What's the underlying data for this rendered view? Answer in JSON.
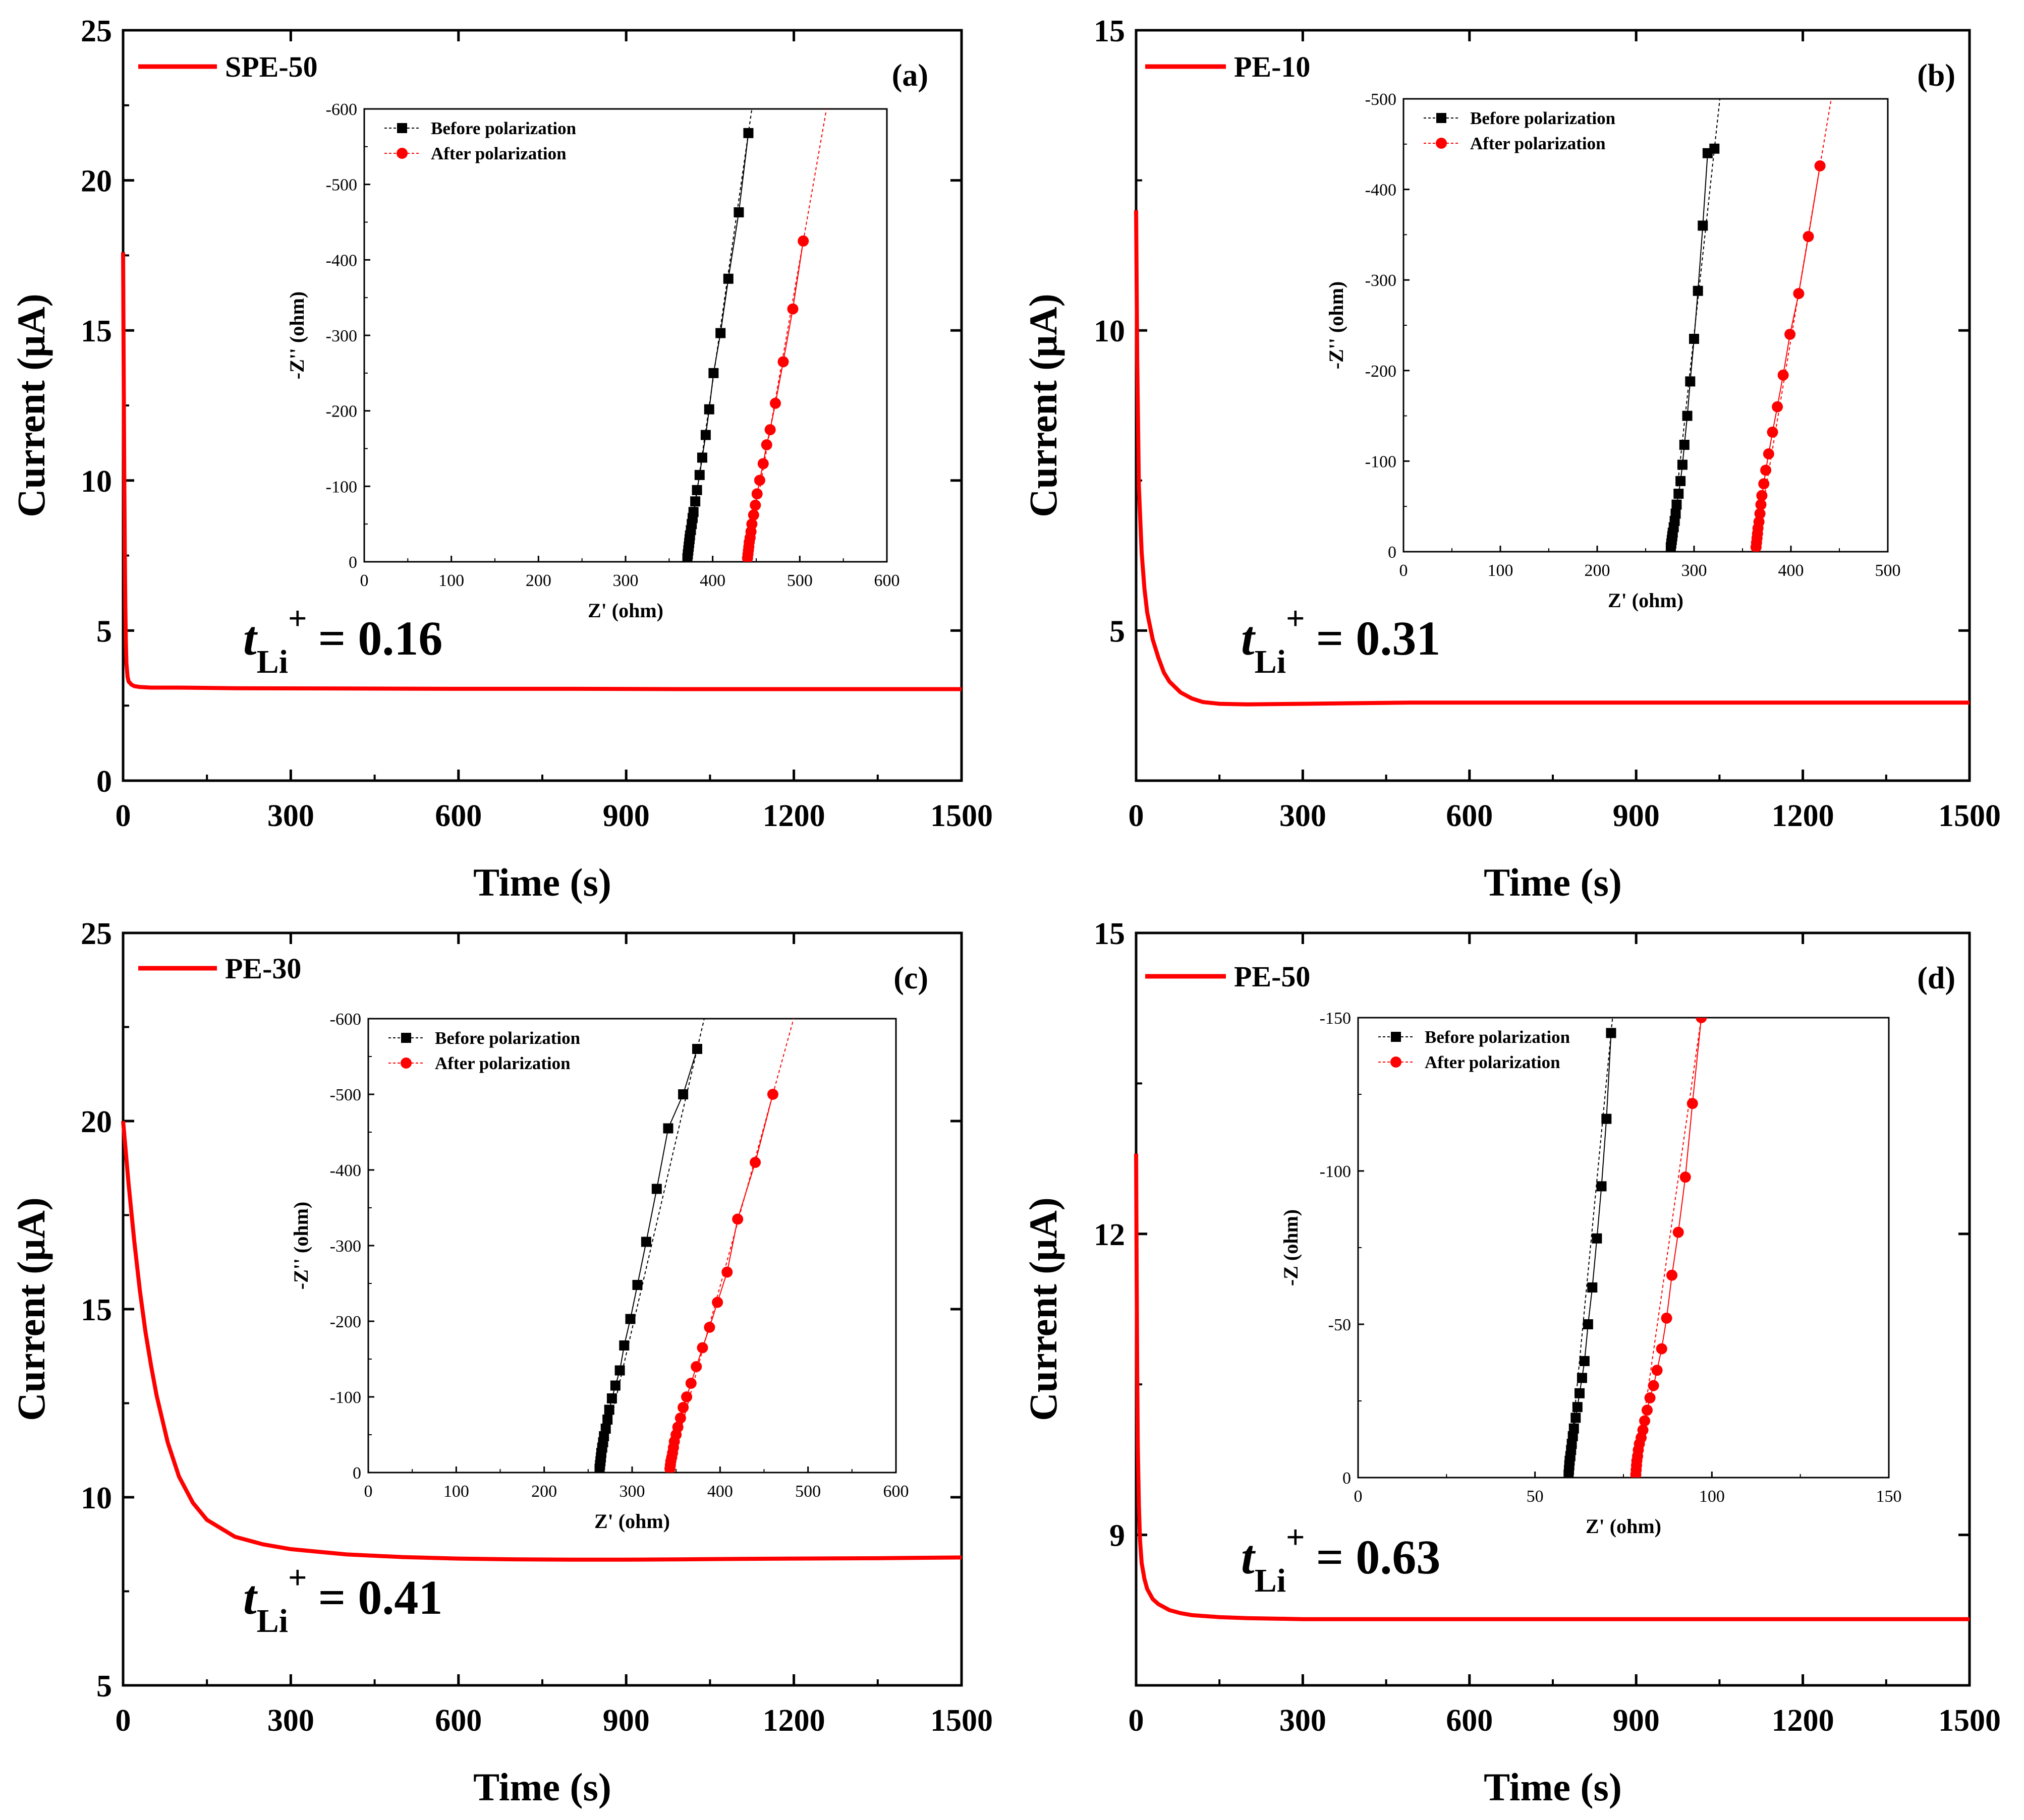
{
  "chart_data": [
    {
      "type": "line",
      "panel_label": "(a)",
      "legend": "SPE-50",
      "xlabel": "Time (s)",
      "ylabel": "Current (μA)",
      "xlim": [
        0,
        1500
      ],
      "ylim": [
        0,
        25
      ],
      "xticks": [
        0,
        300,
        600,
        900,
        1200,
        1500
      ],
      "yticks": [
        0,
        5,
        10,
        15,
        20,
        25
      ],
      "series": [
        {
          "name": "SPE-50",
          "color": "#ff0000",
          "x": [
            0,
            1,
            2,
            3,
            4,
            5,
            6,
            8,
            10,
            15,
            20,
            30,
            50,
            100,
            200,
            400,
            600,
            800,
            1000,
            1200,
            1500
          ],
          "y": [
            17.6,
            14.0,
            10.5,
            7.8,
            5.8,
            4.6,
            3.9,
            3.45,
            3.3,
            3.2,
            3.15,
            3.12,
            3.1,
            3.1,
            3.08,
            3.07,
            3.06,
            3.06,
            3.05,
            3.05,
            3.05
          ]
        }
      ],
      "annotation": {
        "prefix": "t",
        "sub": "Li",
        "sup": "+",
        "value": "= 0.16"
      },
      "inset": {
        "xlabel": "Z' (ohm)",
        "ylabel": "-Z'' (ohm)",
        "xlim": [
          0,
          600
        ],
        "ylim": [
          0,
          -600
        ],
        "xticks": [
          0,
          100,
          200,
          300,
          400,
          500,
          600
        ],
        "yticks": [
          0,
          -100,
          -200,
          -300,
          -400,
          -500,
          -600
        ],
        "series": [
          {
            "name": "Before polarization",
            "color": "#000000",
            "marker": "square",
            "x": [
              371,
              371.5,
              372,
              372.5,
              373,
              373.5,
              374,
              375,
              376,
              377,
              378,
              380,
              382,
              385,
              388,
              392,
              396,
              401,
              409,
              418,
              430,
              441
            ],
            "y": [
              -5,
              -10,
              -15,
              -20,
              -25,
              -30,
              -35,
              -42,
              -50,
              -58,
              -66,
              -80,
              -95,
              -115,
              -138,
              -168,
              -202,
              -250,
              -303,
              -375,
              -463,
              -568
            ]
          },
          {
            "name": "After polarization",
            "color": "#ff0000",
            "marker": "circle",
            "x": [
              440,
              440.5,
              441,
              441.5,
              442,
              443,
              444,
              445,
              447,
              449,
              451,
              454,
              458,
              462,
              466,
              472,
              481,
              492,
              504
            ],
            "y": [
              -5,
              -10,
              -15,
              -20,
              -26,
              -32,
              -40,
              -50,
              -62,
              -75,
              -90,
              -108,
              -130,
              -155,
              -175,
              -210,
              -265,
              -335,
              -425
            ]
          }
        ]
      }
    },
    {
      "type": "line",
      "panel_label": "(b)",
      "legend": "PE-10",
      "xlabel": "Time (s)",
      "ylabel": "Current (μA)",
      "xlim": [
        0,
        1500
      ],
      "ylim": [
        2.5,
        15
      ],
      "xticks": [
        0,
        300,
        600,
        900,
        1200,
        1500
      ],
      "yticks": [
        5,
        10,
        15
      ],
      "series": [
        {
          "name": "PE-10",
          "color": "#ff0000",
          "x": [
            0,
            2,
            5,
            10,
            15,
            20,
            30,
            40,
            50,
            60,
            80,
            100,
            120,
            150,
            200,
            300,
            500,
            700,
            900,
            1100,
            1300,
            1500
          ],
          "y": [
            12.0,
            9.5,
            7.4,
            6.3,
            5.7,
            5.3,
            4.85,
            4.55,
            4.3,
            4.15,
            3.97,
            3.87,
            3.81,
            3.78,
            3.77,
            3.78,
            3.8,
            3.8,
            3.8,
            3.8,
            3.8,
            3.8
          ]
        }
      ],
      "annotation": {
        "prefix": "t",
        "sub": "Li",
        "sup": "+",
        "value": "= 0.31"
      },
      "inset": {
        "xlabel": "Z' (ohm)",
        "ylabel": "-Z'' (ohm)",
        "xlim": [
          0,
          500
        ],
        "ylim": [
          0,
          -500
        ],
        "xticks": [
          0,
          100,
          200,
          300,
          400,
          500
        ],
        "yticks": [
          0,
          -100,
          -200,
          -300,
          -400,
          -500
        ],
        "series": [
          {
            "name": "Before polarization",
            "color": "#000000",
            "marker": "square",
            "x": [
              276,
              276.5,
              277,
              277.5,
              278,
              279,
              280,
              281,
              282,
              284,
              286,
              288,
              290,
              293,
              296,
              300,
              304,
              309,
              314,
              321
            ],
            "y": [
              -5,
              -9,
              -13,
              -17,
              -21,
              -27,
              -34,
              -42,
              -52,
              -64,
              -78,
              -96,
              -118,
              -150,
              -188,
              -235,
              -288,
              -360,
              -440,
              -445
            ]
          },
          {
            "name": "After polarization",
            "color": "#ff0000",
            "marker": "circle",
            "x": [
              364,
              364.5,
              365,
              365.5,
              366,
              367,
              368,
              369,
              370,
              372,
              374,
              377,
              381,
              386,
              392,
              399,
              408,
              418,
              430
            ],
            "y": [
              -5,
              -10,
              -15,
              -20,
              -26,
              -33,
              -42,
              -52,
              -62,
              -75,
              -90,
              -108,
              -132,
              -160,
              -195,
              -240,
              -285,
              -348,
              -426
            ]
          }
        ]
      }
    },
    {
      "type": "line",
      "panel_label": "(c)",
      "legend": "PE-30",
      "xlabel": "Time (s)",
      "ylabel": "Current (μA)",
      "xlim": [
        0,
        1500
      ],
      "ylim": [
        5,
        25
      ],
      "xticks": [
        0,
        300,
        600,
        900,
        1200,
        1500
      ],
      "yticks": [
        5,
        10,
        15,
        20,
        25
      ],
      "series": [
        {
          "name": "PE-30",
          "color": "#ff0000",
          "x": [
            0,
            10,
            20,
            30,
            40,
            50,
            60,
            80,
            100,
            125,
            150,
            200,
            250,
            300,
            400,
            500,
            600,
            700,
            800,
            900,
            1000,
            1100,
            1200,
            1350,
            1500
          ],
          "y": [
            20.0,
            18.3,
            16.8,
            15.5,
            14.4,
            13.5,
            12.7,
            11.45,
            10.55,
            9.85,
            9.4,
            8.95,
            8.75,
            8.62,
            8.48,
            8.41,
            8.37,
            8.35,
            8.34,
            8.34,
            8.35,
            8.36,
            8.37,
            8.38,
            8.4
          ]
        }
      ],
      "annotation": {
        "prefix": "t",
        "sub": "Li",
        "sup": "+",
        "value": "= 0.41"
      },
      "inset": {
        "xlabel": "Z' (ohm)",
        "ylabel": "-Z'' (ohm)",
        "xlim": [
          0,
          600
        ],
        "ylim": [
          0,
          -600
        ],
        "xticks": [
          0,
          100,
          200,
          300,
          400,
          500,
          600
        ],
        "yticks": [
          0,
          -100,
          -200,
          -300,
          -400,
          -500,
          -600
        ],
        "series": [
          {
            "name": "Before polarization",
            "color": "#000000",
            "marker": "square",
            "x": [
              263,
              263.5,
              264,
              264.5,
              265,
              266,
              267,
              268,
              270,
              272,
              274,
              277,
              281,
              286,
              291,
              298,
              306,
              316,
              328,
              341,
              358,
              374
            ],
            "y": [
              -5,
              -10,
              -15,
              -20,
              -26,
              -33,
              -40,
              -48,
              -58,
              -70,
              -83,
              -98,
              -115,
              -135,
              -168,
              -203,
              -248,
              -305,
              -375,
              -455,
              -500,
              -560
            ]
          },
          {
            "name": "After polarization",
            "color": "#ff0000",
            "marker": "circle",
            "x": [
              343,
              343.5,
              344,
              345,
              346,
              347,
              348,
              350,
              352,
              355,
              358,
              362,
              367,
              373,
              380,
              388,
              397,
              408,
              420,
              440,
              460
            ],
            "y": [
              -5,
              -10,
              -15,
              -20,
              -26,
              -33,
              -41,
              -50,
              -60,
              -72,
              -86,
              -100,
              -118,
              -140,
              -165,
              -192,
              -225,
              -265,
              -335,
              -410,
              -500
            ]
          }
        ]
      }
    },
    {
      "type": "line",
      "panel_label": "(d)",
      "legend": "PE-50",
      "xlabel": "Time (s)",
      "ylabel": "Current (μA)",
      "xlim": [
        0,
        1500
      ],
      "ylim": [
        7.5,
        15
      ],
      "xticks": [
        0,
        300,
        600,
        900,
        1200,
        1500
      ],
      "yticks": [
        9,
        12,
        15
      ],
      "series": [
        {
          "name": "PE-50",
          "color": "#ff0000",
          "x": [
            0,
            1,
            2,
            3,
            5,
            7,
            10,
            15,
            20,
            30,
            40,
            60,
            80,
            100,
            150,
            200,
            300,
            500,
            700,
            900,
            1100,
            1300,
            1500
          ],
          "y": [
            12.8,
            11.6,
            10.6,
            9.9,
            9.3,
            8.95,
            8.72,
            8.56,
            8.46,
            8.36,
            8.31,
            8.25,
            8.22,
            8.2,
            8.18,
            8.17,
            8.16,
            8.16,
            8.16,
            8.16,
            8.16,
            8.16,
            8.16
          ]
        }
      ],
      "annotation": {
        "prefix": "t",
        "sub": "Li",
        "sup": "+",
        "value": "= 0.63"
      },
      "inset": {
        "xlabel": "Z' (ohm)",
        "ylabel": "-Z (ohm)",
        "xlim": [
          0,
          150
        ],
        "ylim": [
          0,
          -150
        ],
        "xticks": [
          0,
          50,
          100,
          150
        ],
        "yticks": [
          0,
          -50,
          -100,
          -150
        ],
        "series": [
          {
            "name": "Before polarization",
            "color": "#000000",
            "marker": "square",
            "x": [
              59.5,
              59.6,
              59.7,
              59.8,
              60,
              60.2,
              60.4,
              60.7,
              61,
              61.5,
              62,
              62.6,
              63.3,
              64,
              65,
              66.2,
              67.5,
              68.8,
              70.2,
              71.5
            ],
            "y": [
              -1,
              -2.5,
              -4,
              -5.5,
              -7,
              -9,
              -11,
              -13.5,
              -16,
              -19.5,
              -23,
              -27.5,
              -32.5,
              -38,
              -50,
              -62,
              -78,
              -95,
              -117,
              -145
            ]
          },
          {
            "name": "After polarization",
            "color": "#ff0000",
            "marker": "circle",
            "x": [
              78.5,
              78.6,
              78.7,
              78.8,
              79,
              79.2,
              79.5,
              80,
              80.5,
              81,
              81.7,
              82.5,
              83.5,
              84.5,
              85.8,
              87.2,
              88.7,
              90.5,
              92.5,
              94.5,
              97
            ],
            "y": [
              -1,
              -2.5,
              -4,
              -5.5,
              -7,
              -9,
              -11,
              -13,
              -15.5,
              -18.5,
              -22,
              -26,
              -30,
              -35,
              -42,
              -52,
              -66,
              -80,
              -98,
              -122,
              -150
            ]
          }
        ]
      }
    }
  ]
}
